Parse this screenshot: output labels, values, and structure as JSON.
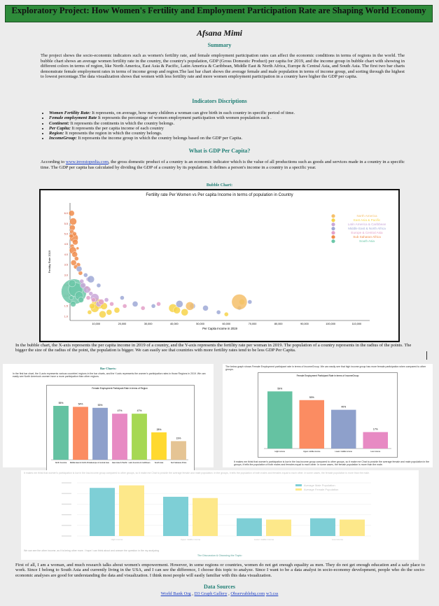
{
  "title": "Exploratory Project: How Women's Fertility and Employment Participation Rate are Shaping World Economy",
  "author": "Afsana Mimi",
  "summary": {
    "heading": "Summary",
    "text": "The project shows the socio-economic indicators such as women's fertility rate, and female employment participation rates can affect the economic conditions in terms of regions in the world. The bubble chart shows an average women fertility rate in the country, the country's population, GDP (Gross Domestic Product) per capita for 2019, and the income group in bubble chart with showing in different colors in terms of region, like North America, East Asia & Pacific, Latin America & Caribbean, Middle East & North Africa, Europe & Central Asia, and South Asia. The first two bar charts demonstrate female employment rates in terms of income group and region.The last bar chart shows the average female and male population in terms of income group, and sorting through the highest to lowest percentage.The data visualization shows that women with less fertility rate and more women employment participation in a country have higher the GDP per capita."
  },
  "indicators": {
    "heading": "Indicators Discriptions",
    "items": [
      {
        "term": "Women Fertility Rate:",
        "desc": " It represents, on average, how many children a woman can give birth in each country in specific period of time."
      },
      {
        "term": "Female employment Rate",
        "desc": " It represents the percentage of women employment participation with women population each ."
      },
      {
        "term": "Continent:",
        "desc": " It represents the continents in which the country belongs."
      },
      {
        "term": "Per Capita:",
        "desc": " It represents the per capita income of each country"
      },
      {
        "term": "Region:",
        "desc": " It represents the region in which the country belongs."
      },
      {
        "term": "IncomeGroup:",
        "desc": " It represents the income group in which the country belongs based on the GDP per Capita."
      }
    ]
  },
  "gdp": {
    "heading": "What is GDP Per Capita?",
    "prefix": "According to ",
    "link": "www.investopedia.com",
    "text": ", the gross domestic product of a country is an economic indicator which is the value of all productions such as goods and services made in a country in a specific time. The GDP per capita has calculated by dividing the GDP of a country by its population. It defines a person's income in a country in a specific year."
  },
  "bubble": {
    "section_title": "Bubble Chart:",
    "caption": "In the bubble chart, the X-axis represents the per capita income in 2019 of a country, and the Y-axis represents the fertility rate per woman in 2019. The population of a country represents in the radius of the points. The bigger the size of the radius of the point, the population is bigger. We can easily see that countries with more fertility rates tend to be less GDP Per Capita."
  },
  "bar1_text": {
    "heading": "Bar Charts:",
    "intro": "In the first bar chart, the X-axis represents various countries' regions in the bar charts, and the Y-axis represents the women's participation rates in those Regions in 2019. We can easily see North America's women have a more participation than other regions."
  },
  "bar2_text": {
    "intro": "The below graph shows Female Employment participant rate in terms of IncomeGroup. We can easily see that high income group has more female participation when compared to other groups.",
    "after": "It makes me think that women's participation is low in the low-income group compared to other groups, so it make me Chat to provide the average female and male population in the groups, it tells the population of both males and females equal to each other. In some cases, the female population is more than the male."
  },
  "bar3_text": {
    "top": "It makes me think that women's participation is low in the low-income group compared to other groups, so it make me Chat to provide the average female and male population. In the groups, it tells the population of both males and females equal to each other. In some cases, the female population is more than the male.",
    "bottom": "We can see the other income, as it is being other more. I hope I can think about and answer the question in the my analyzing",
    "discussion_heading": "The Discussion & Choosing the Topic:"
  },
  "final_paragraph": "First of all, I am a woman, and much research talks about women's empowerment. However, in some regions or countries, women do not get enough equality as men. They do not get enough education and a safe place to work. Since I belong to South Asia and currently living in the USA, and I can see the difference, I choose this topic to analyze. Since I want to be a data analyst in socio-economy development, people who do the socio-economic analyses are good for understanding the data and visualization. I think most people will easily familiar with this data visualization.",
  "sources": {
    "heading": "Data Sources",
    "links": [
      "World Bank Org",
      "D3 Graph Gallery",
      "Observablehq.com",
      "w3.css"
    ],
    "separator": " , "
  },
  "colors": {
    "north_america": "#f5c06b",
    "east_asia_pacific": "#f7d44a",
    "latin_america": "#c9a7d8",
    "middle_east": "#9fa9d6",
    "europe_central_asia": "#e3a0c8",
    "sub_saharan": "#f08c4b",
    "south_asia": "#6cc7a8"
  },
  "chart_data": [
    {
      "type": "scatter",
      "title": "Fertility rate Per Women vs Per capita Income in terms of population in Country",
      "xlabel": "Per Capita Income in 2019",
      "ylabel": "Fertility Rate 2019",
      "xlim": [
        0,
        115000
      ],
      "ylim": [
        0.8,
        6.5
      ],
      "xticks": [
        "10,000",
        "20,000",
        "30,000",
        "40,000",
        "50,000",
        "60,000",
        "70,000",
        "80,000",
        "90,000",
        "100,000",
        "110,000"
      ],
      "yticks": [
        "1.0",
        "1.5",
        "2.0",
        "2.5",
        "3.0",
        "3.5",
        "4.0",
        "4.5",
        "5.0",
        "5.5",
        "6.0"
      ],
      "legend": [
        "North America",
        "East Asia & Pacific",
        "Latin America & Caribbean",
        "Middle East & North Africa",
        "Europe & Central Asia",
        "Sub Saharan Africa",
        "South Asia"
      ],
      "legend_position": "top-right",
      "series": [
        {
          "name": "Sub Saharan Africa",
          "color": "#f08c4b",
          "points": [
            [
              600,
              6.0
            ],
            [
              1200,
              5.6
            ],
            [
              900,
              5.3
            ],
            [
              700,
              5.1
            ],
            [
              1500,
              4.8
            ],
            [
              2000,
              4.6
            ],
            [
              800,
              4.4
            ],
            [
              1100,
              4.2
            ],
            [
              1800,
              4.0
            ],
            [
              2500,
              3.8
            ],
            [
              1400,
              3.6
            ],
            [
              3200,
              3.5
            ],
            [
              2200,
              3.4
            ],
            [
              4000,
              3.1
            ],
            [
              6500,
              2.4
            ],
            [
              7500,
              2.3
            ],
            [
              1700,
              5.0
            ],
            [
              500,
              4.9
            ],
            [
              2900,
              4.3
            ]
          ],
          "sizes": [
            4,
            5,
            4,
            3,
            6,
            4,
            3,
            5,
            4,
            3,
            4,
            3,
            3,
            3,
            2,
            2,
            3,
            3,
            2
          ]
        },
        {
          "name": "South Asia",
          "color": "#6cc7a8",
          "points": [
            [
              1500,
              2.2
            ],
            [
              2100,
              2.3
            ],
            [
              3500,
              2.0
            ],
            [
              4200,
              1.8
            ],
            [
              800,
              2.6
            ],
            [
              1200,
              1.6
            ],
            [
              500,
              1.9
            ]
          ],
          "sizes": [
            18,
            10,
            6,
            4,
            5,
            4,
            3
          ]
        },
        {
          "name": "East Asia & Pacific",
          "color": "#f7d44a",
          "points": [
            [
              10000,
              1.7
            ],
            [
              11000,
              1.6
            ],
            [
              13000,
              1.5
            ],
            [
              9500,
              1.4
            ],
            [
              15000,
              1.2
            ],
            [
              12500,
              1.1
            ],
            [
              18000,
              1.3
            ],
            [
              7500,
              1.2
            ],
            [
              8500,
              1.5
            ],
            [
              39500,
              1.4
            ],
            [
              41000,
              1.3
            ],
            [
              44000,
              1.2
            ],
            [
              60000,
              1.1
            ],
            [
              66000,
              1.7
            ]
          ],
          "sizes": [
            6,
            7,
            5,
            6,
            4,
            5,
            4,
            3,
            4,
            6,
            5,
            5,
            3,
            4
          ]
        },
        {
          "name": "Latin America & Caribbean",
          "color": "#c9a7d8",
          "points": [
            [
              5000,
              2.5
            ],
            [
              6500,
              2.3
            ],
            [
              8000,
              2.1
            ],
            [
              9500,
              1.9
            ],
            [
              4500,
              2.7
            ],
            [
              11000,
              1.6
            ],
            [
              7000,
              2.8
            ],
            [
              14000,
              1.8
            ]
          ],
          "sizes": [
            4,
            5,
            3,
            6,
            3,
            4,
            3,
            3
          ]
        },
        {
          "name": "Middle East & North Africa",
          "color": "#9fa9d6",
          "points": [
            [
              3500,
              3.3
            ],
            [
              6000,
              3.0
            ],
            [
              8000,
              2.8
            ],
            [
              11000,
              2.5
            ],
            [
              20000,
              1.9
            ],
            [
              25000,
              1.6
            ],
            [
              32000,
              1.5
            ],
            [
              42000,
              1.6
            ],
            [
              47000,
              1.5
            ],
            [
              52000,
              1.4
            ],
            [
              57000,
              1.2
            ],
            [
              65000,
              1.4
            ],
            [
              69000,
              1.7
            ]
          ],
          "sizes": [
            4,
            3,
            5,
            3,
            3,
            4,
            3,
            5,
            4,
            4,
            3,
            3,
            3
          ]
        },
        {
          "name": "Europe & Central Asia",
          "color": "#e3a0c8",
          "points": [
            [
              7000,
              1.9
            ],
            [
              9000,
              1.8
            ],
            [
              12000,
              1.7
            ],
            [
              16000,
              1.6
            ],
            [
              21000,
              1.5
            ],
            [
              28000,
              1.4
            ],
            [
              34000,
              1.6
            ]
          ],
          "sizes": [
            3,
            3,
            4,
            3,
            3,
            3,
            3
          ]
        },
        {
          "name": "North America",
          "color": "#f5c06b",
          "points": [
            [
              46000,
              1.5
            ],
            [
              65000,
              1.7
            ]
          ],
          "sizes": [
            6,
            11
          ]
        }
      ]
    },
    {
      "type": "bar",
      "title": "Female Employment Participant Rate in terms of Region",
      "categories": [
        "North America",
        "Middle East & North Africa",
        "Europe & Central Asia",
        "East Asia & Pacific",
        "Latin America & Caribbean",
        "South Asia",
        "Sub Saharan Africa"
      ],
      "values": [
        55,
        54,
        53,
        47,
        47,
        28,
        19
      ],
      "labels": [
        "55%",
        "54%",
        "53%",
        "47%",
        "47%",
        "28%",
        "19%"
      ],
      "colors": [
        "#65c2a2",
        "#fb8c62",
        "#8ea0cb",
        "#e78ac3",
        "#a6d854",
        "#ffd92f",
        "#e5c494"
      ],
      "ylim": [
        0,
        60
      ]
    },
    {
      "type": "bar",
      "title": "Female Employment Participant Rate in terms of IncomeGroup",
      "categories": [
        "High income",
        "Upper middle income",
        "Lower middle income",
        "Low income"
      ],
      "values": [
        59,
        50,
        40,
        17
      ],
      "labels": [
        "59%",
        "50%",
        "40%",
        "17%"
      ],
      "colors": [
        "#65c2a2",
        "#fb8c62",
        "#8ea0cb",
        "#e78ac3"
      ],
      "ylim": [
        0,
        65
      ]
    },
    {
      "type": "bar",
      "categories": [
        "High income",
        "Upper middle income",
        "Lower middle income",
        "Low income"
      ],
      "series": [
        {
          "name": "Average Male Population",
          "color": "#7ecfd6",
          "values": [
            38,
            31,
            14,
            14
          ]
        },
        {
          "name": "Average Female Population",
          "color": "#fde88a",
          "values": [
            40,
            30,
            13,
            13
          ]
        }
      ],
      "ylim": [
        0,
        42
      ]
    }
  ]
}
